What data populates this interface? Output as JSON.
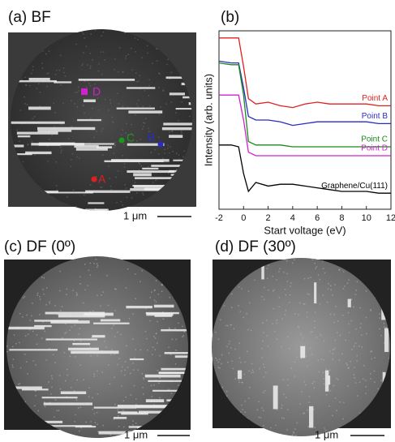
{
  "panels": {
    "a": {
      "label": "(a) BF",
      "scale": "1 μm",
      "points": [
        "A",
        "B",
        "C",
        "D"
      ]
    },
    "c": {
      "label": "(c) DF (0º)",
      "scale": "1 μm"
    },
    "d": {
      "label": "(d) DF (30º)",
      "scale": "1 μm"
    }
  },
  "chart_data": {
    "type": "line",
    "title": "(b)",
    "x_label": "Start voltage (eV)",
    "y_label": "Intensity (arb. units)",
    "x": [
      -2,
      -1,
      -0.4,
      0,
      0.4,
      1,
      2,
      3,
      4,
      5,
      6,
      7,
      8,
      9,
      10,
      11,
      12
    ],
    "xlim": [
      -2,
      12
    ],
    "xticks": [
      -2,
      0,
      2,
      4,
      6,
      8,
      10,
      12
    ],
    "ylim": [
      0,
      100
    ],
    "series": [
      {
        "name": "Point A",
        "color": "#e02020",
        "values": [
          96,
          96,
          96,
          80,
          62,
          59,
          60,
          58,
          57,
          59,
          60,
          59,
          59,
          59,
          59,
          58,
          58
        ]
      },
      {
        "name": "Point B",
        "color": "#2a2ac8",
        "values": [
          83,
          82,
          82,
          68,
          52,
          50,
          50,
          49,
          47,
          48,
          49,
          49,
          49,
          49,
          49,
          48,
          48
        ]
      },
      {
        "name": "Point C",
        "color": "#1a8a1a",
        "values": [
          82,
          81,
          81,
          64,
          38,
          36,
          36,
          36,
          35,
          35,
          35,
          35,
          35,
          35,
          35,
          35,
          35
        ]
      },
      {
        "name": "Point D",
        "color": "#d020d0",
        "values": [
          64,
          64,
          64,
          50,
          32,
          30,
          30,
          30,
          30,
          30,
          30,
          30,
          30,
          30,
          30,
          30,
          30
        ]
      },
      {
        "name": "Graphene/Cu(111)",
        "color": "#000000",
        "values": [
          36,
          36,
          35,
          20,
          10,
          15,
          13,
          14,
          14,
          13,
          12,
          11,
          10,
          10,
          10,
          9,
          9
        ]
      }
    ]
  }
}
